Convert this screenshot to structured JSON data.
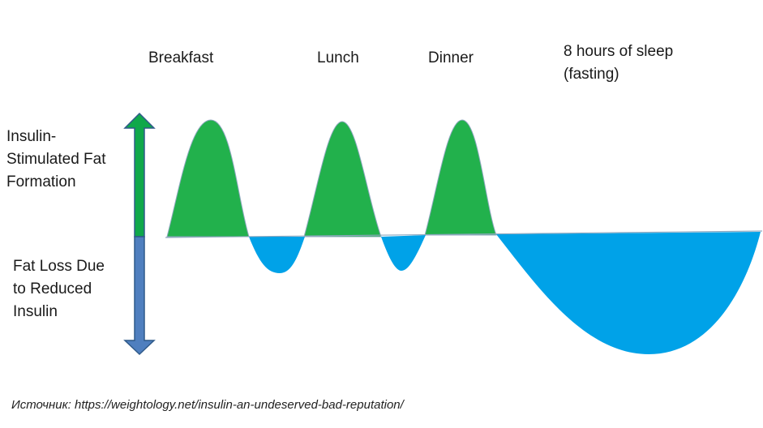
{
  "meals": {
    "breakfast": "Breakfast",
    "lunch": "Lunch",
    "dinner": "Dinner",
    "sleep": "8 hours of sleep\n(fasting)"
  },
  "axis": {
    "gain_label": "Insulin-\nStimulated Fat\nFormation",
    "loss_label": "Fat Loss Due\nto Reduced\nInsulin"
  },
  "source": "Источник: https://weightology.net/insulin-an-undeserved-bad-reputation/",
  "colors": {
    "gain": "#22b14c",
    "loss": "#00a2e8",
    "arrow_up": "#0fa84a",
    "arrow_down": "#4f7fbf",
    "arrow_stroke": "#2f5a8a",
    "outline": "#8fa8bf"
  }
}
